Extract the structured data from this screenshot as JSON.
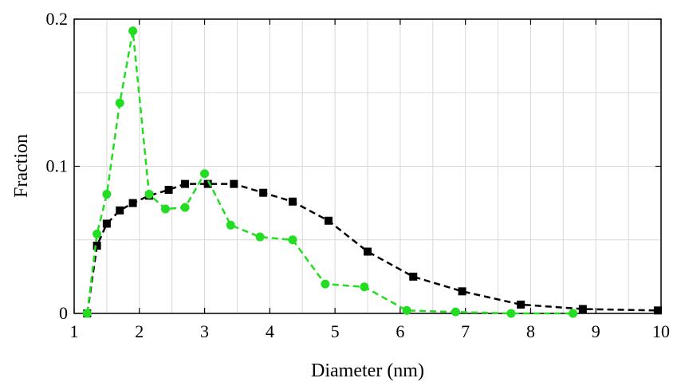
{
  "chart_data": {
    "type": "line",
    "xlabel": "Diameter (nm)",
    "ylabel": "Fraction",
    "xlim": [
      1,
      10
    ],
    "ylim": [
      0,
      0.2
    ],
    "x_ticks": [
      1,
      2,
      3,
      4,
      5,
      6,
      7,
      8,
      9,
      10
    ],
    "x_tick_labels": [
      "1",
      "2",
      "3",
      "4",
      "5",
      "6",
      "7",
      "8",
      "9",
      "10"
    ],
    "y_ticks": [
      0,
      0.1,
      0.2
    ],
    "y_tick_labels": [
      "0",
      "0.1",
      "0.2"
    ],
    "grid": true,
    "series": [
      {
        "color": "#000000",
        "marker": "square",
        "line_style": "dashed",
        "x": [
          1.2,
          1.35,
          1.5,
          1.7,
          1.9,
          2.15,
          2.45,
          2.7,
          3.05,
          3.45,
          3.9,
          4.35,
          4.9,
          5.5,
          6.2,
          6.95,
          7.85,
          8.8,
          9.95
        ],
        "y": [
          0.0,
          0.046,
          0.061,
          0.07,
          0.075,
          0.08,
          0.084,
          0.088,
          0.088,
          0.088,
          0.082,
          0.076,
          0.063,
          0.042,
          0.025,
          0.015,
          0.006,
          0.003,
          0.002
        ]
      },
      {
        "color": "#22dd22",
        "marker": "circle",
        "line_style": "dashed",
        "x": [
          1.2,
          1.35,
          1.5,
          1.7,
          1.9,
          2.15,
          2.4,
          2.7,
          3.0,
          3.4,
          3.85,
          4.35,
          4.85,
          5.45,
          6.1,
          6.85,
          7.7,
          8.65
        ],
        "y": [
          0.0,
          0.054,
          0.081,
          0.143,
          0.192,
          0.081,
          0.071,
          0.072,
          0.095,
          0.06,
          0.052,
          0.05,
          0.02,
          0.018,
          0.002,
          0.001,
          0.0,
          0.0
        ]
      }
    ]
  }
}
